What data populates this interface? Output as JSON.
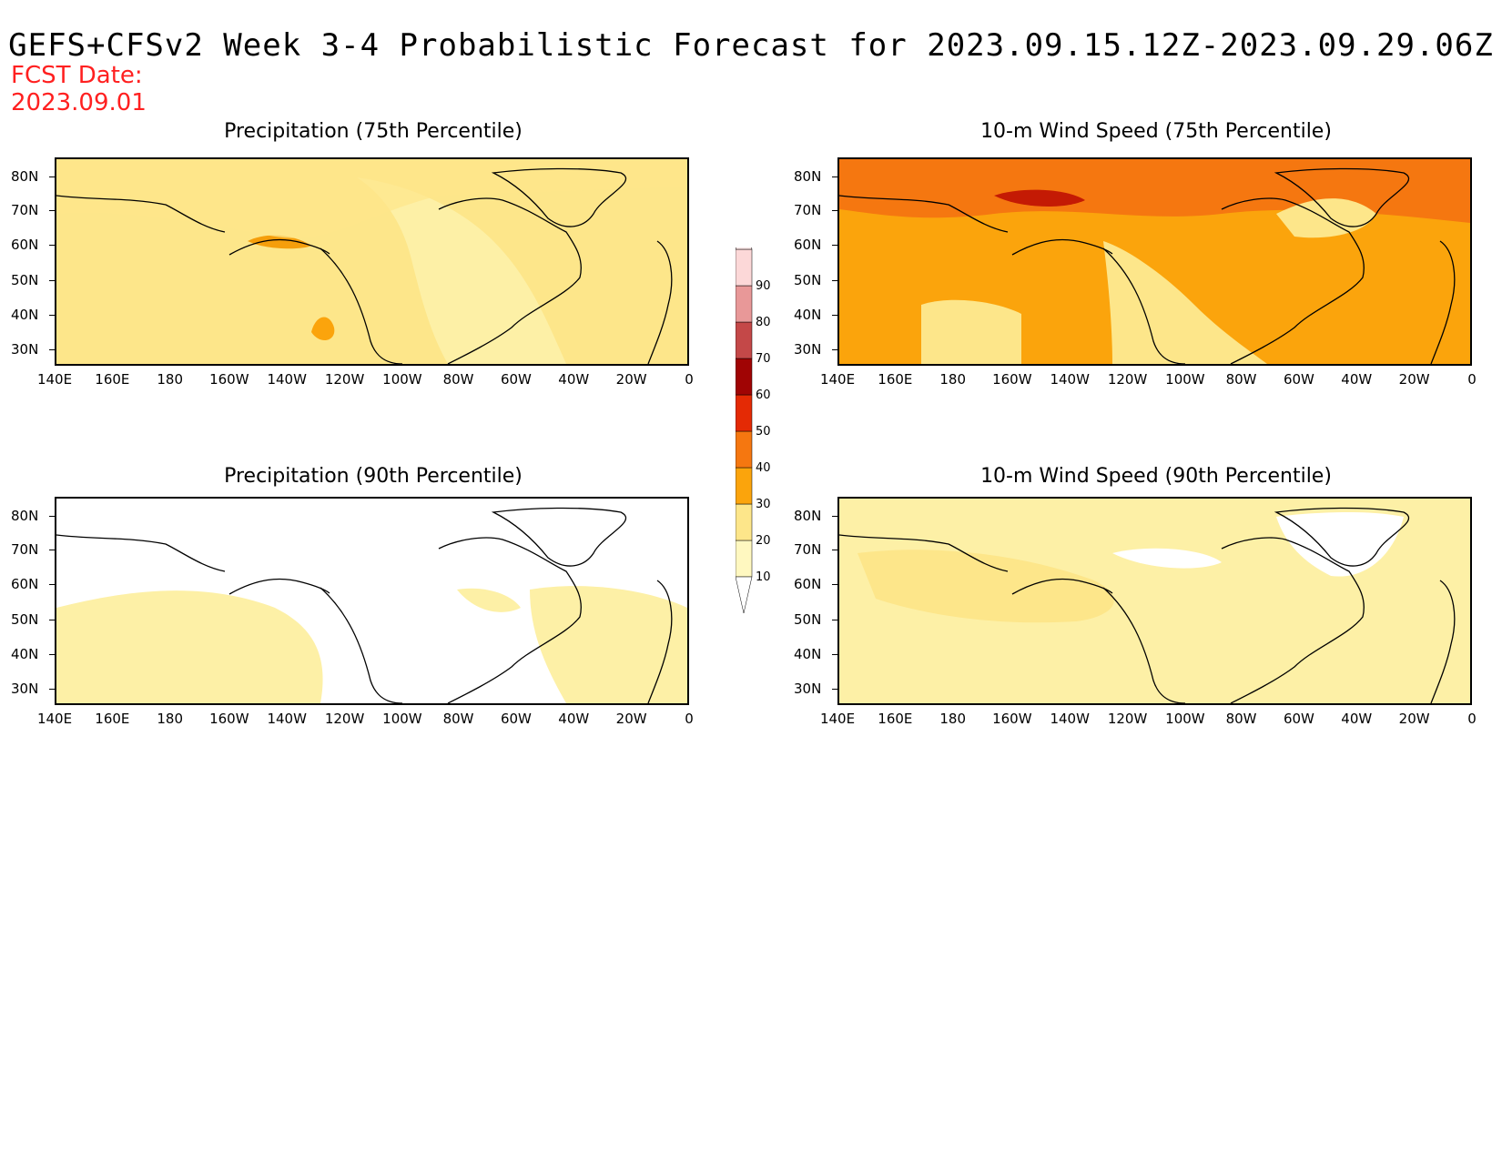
{
  "title": "GEFS+CFSv2 Week 3-4 Probabilistic Forecast for 2023.09.15.12Z-2023.09.29.06Z",
  "fcst_label": "FCST Date:",
  "fcst_date": "2023.09.01",
  "lat_labels": [
    "80N",
    "70N",
    "60N",
    "50N",
    "40N",
    "30N"
  ],
  "lon_labels": [
    "140E",
    "160E",
    "180",
    "160W",
    "140W",
    "120W",
    "100W",
    "80W",
    "60W",
    "40W",
    "20W",
    "0"
  ],
  "panels": [
    {
      "title": "Precipitation (75th Percentile)",
      "background": "#fde68a"
    },
    {
      "title": "10-m Wind Speed (75th Percentile)",
      "background": "#fba40c"
    },
    {
      "title": "Precipitation (90th Percentile)",
      "background": "#ffffff"
    },
    {
      "title": "10-m Wind Speed (90th Percentile)",
      "background": "#fdf0a6"
    }
  ],
  "colorbar": {
    "levels": [
      "10",
      "20",
      "30",
      "40",
      "50",
      "60",
      "70",
      "80",
      "90"
    ],
    "colors": [
      "#fff8c0",
      "#fde68a",
      "#fba40c",
      "#f57710",
      "#e42a05",
      "#a00404",
      "#c44848",
      "#e89898",
      "#fcd8d8"
    ]
  }
}
